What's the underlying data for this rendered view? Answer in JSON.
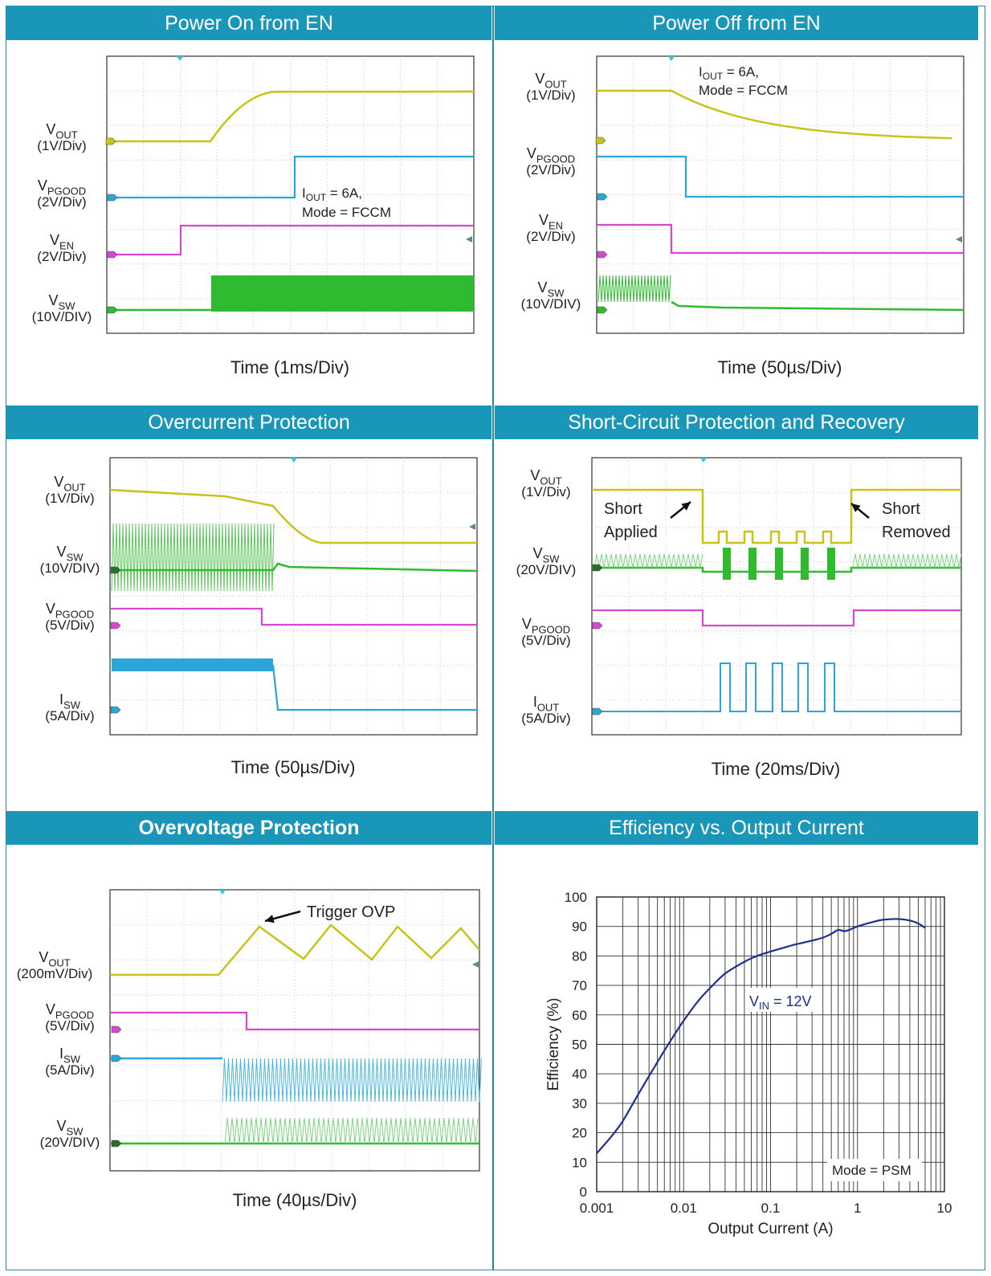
{
  "panels": [
    {
      "title": "Power On from EN",
      "time_label": "Time (1ms/Div)",
      "note": [
        "I_OUT = 6A,",
        "Mode = FCCM"
      ],
      "channels": [
        {
          "name": "VOUT",
          "sub": "",
          "div": "(1V/Div)",
          "color": "#c8c21a"
        },
        {
          "name": "VPGOOD",
          "sub": "",
          "div": "(2V/Div)",
          "color": "#2aa7d8"
        },
        {
          "name": "VEN",
          "sub": "",
          "div": "(2V/Div)",
          "color": "#d548cf"
        },
        {
          "name": "VSW",
          "sub": "",
          "div": "(10V/DIV)",
          "color": "#2fbb2f"
        }
      ]
    },
    {
      "title": "Power Off from EN",
      "time_label": "Time (50µs/Div)",
      "note": [
        "I_OUT = 6A,",
        "Mode = FCCM"
      ],
      "channels": [
        {
          "name": "VOUT",
          "div": "(1V/Div)",
          "color": "#c8c21a"
        },
        {
          "name": "VPGOOD",
          "div": "(2V/Div)",
          "color": "#2aa7d8"
        },
        {
          "name": "VEN",
          "div": "(2V/Div)",
          "color": "#d548cf"
        },
        {
          "name": "VSW",
          "div": "(10V/DIV)",
          "color": "#2fbb2f"
        }
      ]
    },
    {
      "title": "Overcurrent Protection",
      "time_label": "Time (50µs/Div)",
      "channels": [
        {
          "name": "VOUT",
          "div": "(1V/Div)",
          "color": "#c8c21a"
        },
        {
          "name": "VSW",
          "div": "(10V/DIV)",
          "color": "#2fbb2f"
        },
        {
          "name": "VPGOOD",
          "div": "(5V/Div)",
          "color": "#d548cf"
        },
        {
          "name": "ISW",
          "div": "(5A/Div)",
          "color": "#2aa7d8"
        }
      ]
    },
    {
      "title": "Short-Circuit Protection and Recovery",
      "time_label": "Time (20ms/Div)",
      "annotations": [
        "Short",
        "Applied",
        "Short",
        "Removed"
      ],
      "channels": [
        {
          "name": "VOUT",
          "div": "(1V/Div)",
          "color": "#c8c21a"
        },
        {
          "name": "VSW",
          "div": "(20V/DIV)",
          "color": "#2fbb2f"
        },
        {
          "name": "VPGOOD",
          "div": "(5V/Div)",
          "color": "#d548cf"
        },
        {
          "name": "IOUT",
          "div": "(5A/Div)",
          "color": "#2aa7d8"
        }
      ]
    },
    {
      "title": "Overvoltage Protection",
      "time_label": "Time (40µs/Div)",
      "annotations": [
        "Trigger OVP"
      ],
      "channels": [
        {
          "name": "VOUT",
          "div": "(200mV/Div)",
          "color": "#c8c21a"
        },
        {
          "name": "VPGOOD",
          "div": "(5V/Div)",
          "color": "#d548cf"
        },
        {
          "name": "ISW",
          "div": "(5A/Div)",
          "color": "#2aa7d8"
        },
        {
          "name": "VSW",
          "div": "(20V/DIV)",
          "color": "#2fbb2f"
        }
      ]
    },
    {
      "title": "Efficiency vs. Output Current"
    }
  ],
  "chart_data": {
    "type": "line",
    "title": "Efficiency vs. Output Current",
    "xlabel": "Output Current (A)",
    "ylabel": "Efficiency (%)",
    "xscale": "log",
    "xlim": [
      0.001,
      10
    ],
    "ylim": [
      0,
      100
    ],
    "xticks": [
      "0.001",
      "0.01",
      "0.1",
      "1",
      "10"
    ],
    "yticks": [
      "0",
      "10",
      "20",
      "30",
      "40",
      "50",
      "60",
      "70",
      "80",
      "90",
      "100"
    ],
    "grid": true,
    "series_label": "VIN = 12V",
    "mode_label": "Mode = PSM",
    "line_color": "#1f2f8f",
    "x": [
      0.001,
      0.0015,
      0.002,
      0.003,
      0.005,
      0.007,
      0.01,
      0.015,
      0.02,
      0.03,
      0.05,
      0.07,
      0.1,
      0.15,
      0.2,
      0.3,
      0.4,
      0.5,
      0.6,
      0.7,
      0.8,
      1.0,
      1.5,
      2.0,
      3.0,
      4.0,
      5.0,
      6.0
    ],
    "y": [
      13,
      19,
      24,
      33,
      44,
      51,
      58,
      65,
      69,
      74,
      78,
      80,
      81.5,
      83,
      84,
      85.2,
      86.2,
      87.5,
      88.8,
      88.4,
      88.8,
      90,
      91.5,
      92.3,
      92.5,
      92,
      91,
      89.5
    ]
  }
}
